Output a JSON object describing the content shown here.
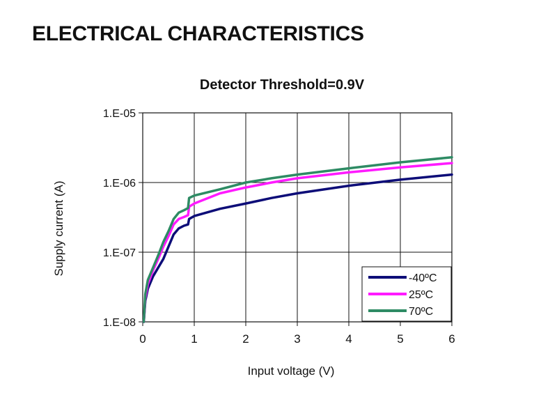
{
  "page": {
    "heading": "ELECTRICAL CHARACTERISTICS"
  },
  "chart_data": {
    "type": "line",
    "title": "Detector Threshold=0.9V",
    "xlabel": "Input voltage (V)",
    "ylabel": "Supply current (A)",
    "x_scale": "linear",
    "y_scale": "log",
    "xlim": [
      0,
      6
    ],
    "ylim": [
      1e-08,
      1e-05
    ],
    "x_ticks": [
      0,
      1,
      2,
      3,
      4,
      5,
      6
    ],
    "x_tick_labels": [
      "0",
      "1",
      "2",
      "3",
      "4",
      "5",
      "6"
    ],
    "y_ticks": [
      1e-08,
      1e-07,
      1e-06,
      1e-05
    ],
    "y_tick_labels": [
      "1.E-08",
      "1.E-07",
      "1.E-06",
      "1.E-05"
    ],
    "grid": true,
    "legend_position": "bottom-right",
    "series": [
      {
        "name": "-40ºC",
        "color": "#0d0d78",
        "x": [
          0.02,
          0.05,
          0.1,
          0.2,
          0.3,
          0.4,
          0.5,
          0.6,
          0.7,
          0.8,
          0.88,
          0.9,
          1.0,
          1.5,
          2.0,
          2.5,
          3.0,
          4.0,
          5.0,
          6.0
        ],
        "y": [
          1e-08,
          2e-08,
          3e-08,
          4.5e-08,
          6e-08,
          8e-08,
          1.2e-07,
          1.8e-07,
          2.2e-07,
          2.4e-07,
          2.5e-07,
          3e-07,
          3.3e-07,
          4.2e-07,
          5e-07,
          6e-07,
          7e-07,
          9e-07,
          1.1e-06,
          1.3e-06
        ]
      },
      {
        "name": "25ºC",
        "color": "#ff1aff",
        "x": [
          0.02,
          0.05,
          0.1,
          0.2,
          0.3,
          0.4,
          0.5,
          0.6,
          0.7,
          0.8,
          0.88,
          0.9,
          1.0,
          1.5,
          2.0,
          2.5,
          3.0,
          4.0,
          5.0,
          6.0
        ],
        "y": [
          1e-08,
          2.2e-08,
          3.5e-08,
          5.5e-08,
          8e-08,
          1.2e-07,
          1.7e-07,
          2.5e-07,
          3e-07,
          3.2e-07,
          3.4e-07,
          4.5e-07,
          5e-07,
          7e-07,
          8.5e-07,
          1e-06,
          1.15e-06,
          1.4e-06,
          1.65e-06,
          1.9e-06
        ]
      },
      {
        "name": "70ºC",
        "color": "#2e8b64",
        "x": [
          0.02,
          0.05,
          0.1,
          0.2,
          0.3,
          0.4,
          0.5,
          0.6,
          0.7,
          0.8,
          0.88,
          0.9,
          1.0,
          1.5,
          2.0,
          2.5,
          3.0,
          4.0,
          5.0,
          6.0
        ],
        "y": [
          1e-08,
          2.5e-08,
          4e-08,
          6e-08,
          9e-08,
          1.4e-07,
          2e-07,
          3e-07,
          3.7e-07,
          4e-07,
          4.3e-07,
          6e-07,
          6.5e-07,
          8e-07,
          1e-06,
          1.15e-06,
          1.3e-06,
          1.6e-06,
          1.95e-06,
          2.3e-06
        ]
      }
    ]
  }
}
